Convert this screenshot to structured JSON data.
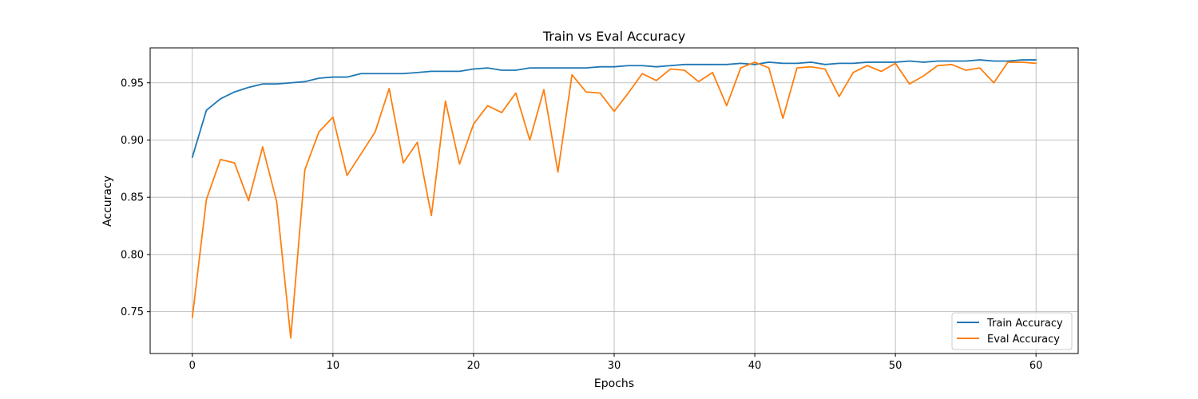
{
  "chart_data": {
    "type": "line",
    "title": "Train vs Eval Accuracy",
    "xlabel": "Epochs",
    "ylabel": "Accuracy",
    "xlim": [
      -3,
      63
    ],
    "ylim": [
      0.7135,
      0.9805
    ],
    "grid": true,
    "legend_position": "lower right",
    "x_ticks": [
      0,
      10,
      20,
      30,
      40,
      50,
      60
    ],
    "x_tick_labels": [
      "0",
      "10",
      "20",
      "30",
      "40",
      "50",
      "60"
    ],
    "y_ticks": [
      0.75,
      0.8,
      0.85,
      0.9,
      0.95
    ],
    "y_tick_labels": [
      "0.75",
      "0.80",
      "0.85",
      "0.90",
      "0.95"
    ],
    "x": [
      0,
      1,
      2,
      3,
      4,
      5,
      6,
      7,
      8,
      9,
      10,
      11,
      12,
      13,
      14,
      15,
      16,
      17,
      18,
      19,
      20,
      21,
      22,
      23,
      24,
      25,
      26,
      27,
      28,
      29,
      30,
      31,
      32,
      33,
      34,
      35,
      36,
      37,
      38,
      39,
      40,
      41,
      42,
      43,
      44,
      45,
      46,
      47,
      48,
      49,
      50,
      51,
      52,
      53,
      54,
      55,
      56,
      57,
      58,
      59,
      60
    ],
    "series": [
      {
        "name": "Train Accuracy",
        "color": "#1f77b4",
        "values": [
          0.885,
          0.926,
          0.936,
          0.942,
          0.946,
          0.949,
          0.949,
          0.95,
          0.951,
          0.954,
          0.955,
          0.955,
          0.958,
          0.958,
          0.958,
          0.958,
          0.959,
          0.96,
          0.96,
          0.96,
          0.962,
          0.963,
          0.961,
          0.961,
          0.963,
          0.963,
          0.963,
          0.963,
          0.963,
          0.964,
          0.964,
          0.965,
          0.965,
          0.964,
          0.965,
          0.966,
          0.966,
          0.966,
          0.966,
          0.967,
          0.966,
          0.968,
          0.967,
          0.967,
          0.968,
          0.966,
          0.967,
          0.967,
          0.968,
          0.968,
          0.968,
          0.969,
          0.968,
          0.969,
          0.969,
          0.969,
          0.97,
          0.969,
          0.969,
          0.97,
          0.97
        ]
      },
      {
        "name": "Eval Accuracy",
        "color": "#ff7f0e",
        "values": [
          0.745,
          0.848,
          0.883,
          0.88,
          0.847,
          0.894,
          0.846,
          0.727,
          0.874,
          0.907,
          0.92,
          0.869,
          0.888,
          0.907,
          0.945,
          0.88,
          0.898,
          0.834,
          0.934,
          0.879,
          0.914,
          0.93,
          0.924,
          0.941,
          0.9,
          0.944,
          0.872,
          0.957,
          0.942,
          0.941,
          0.925,
          0.941,
          0.958,
          0.952,
          0.962,
          0.961,
          0.951,
          0.959,
          0.93,
          0.963,
          0.968,
          0.963,
          0.919,
          0.963,
          0.964,
          0.962,
          0.938,
          0.959,
          0.965,
          0.96,
          0.967,
          0.949,
          0.956,
          0.965,
          0.966,
          0.961,
          0.963,
          0.95,
          0.968,
          0.968,
          0.967
        ]
      }
    ]
  }
}
